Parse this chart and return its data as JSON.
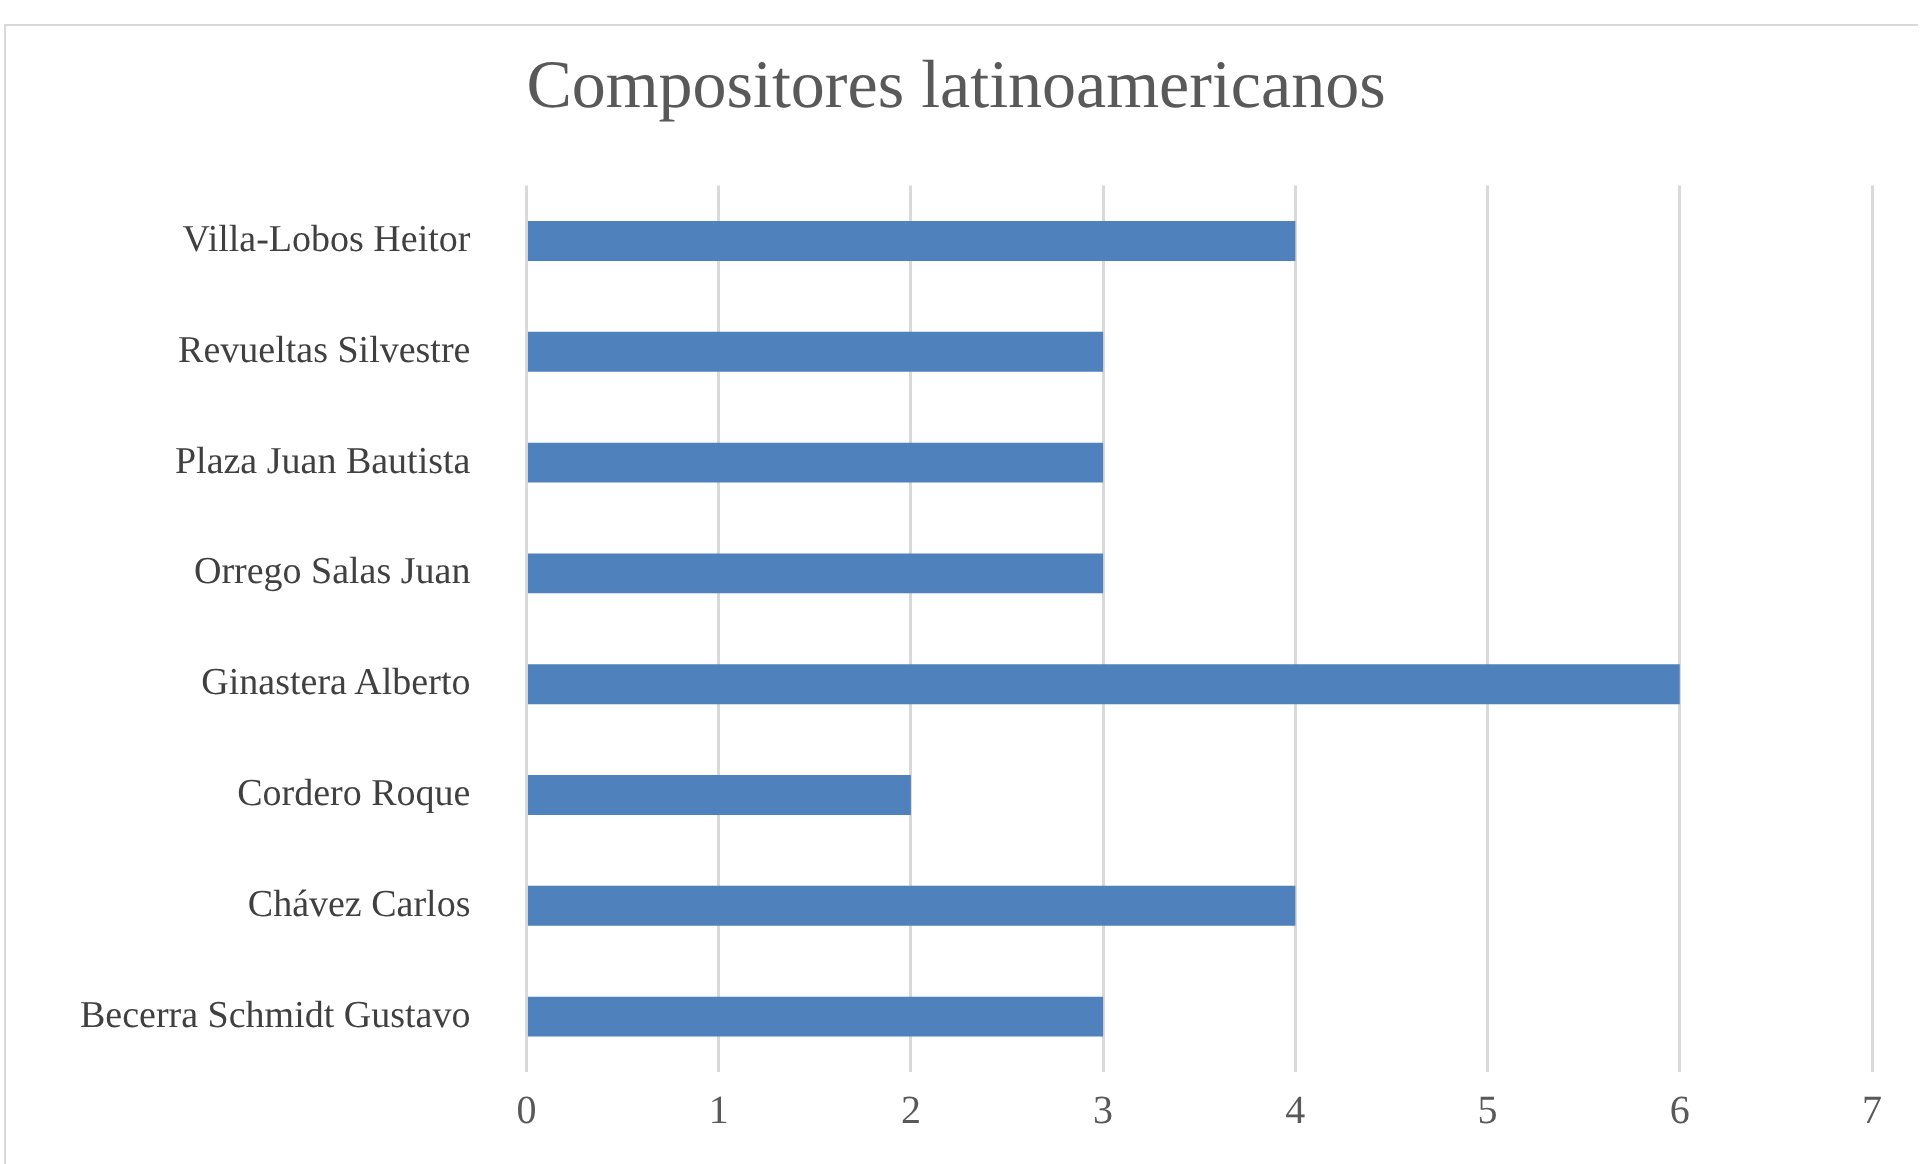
{
  "chart_data": {
    "type": "bar",
    "orientation": "horizontal",
    "title": "Compositores latinoamericanos",
    "categories": [
      "Villa-Lobos Heitor",
      "Revueltas Silvestre",
      "Plaza Juan Bautista",
      "Orrego Salas Juan",
      "Ginastera Alberto",
      "Cordero Roque",
      "Chávez Carlos",
      "Becerra Schmidt Gustavo"
    ],
    "values": [
      4,
      3,
      3,
      3,
      6,
      2,
      4,
      3
    ],
    "color": "#4f81bd",
    "xlim": [
      0,
      7
    ],
    "xticks": [
      0,
      1,
      2,
      3,
      4,
      5,
      6,
      7
    ],
    "grid": "x",
    "legend": false
  }
}
